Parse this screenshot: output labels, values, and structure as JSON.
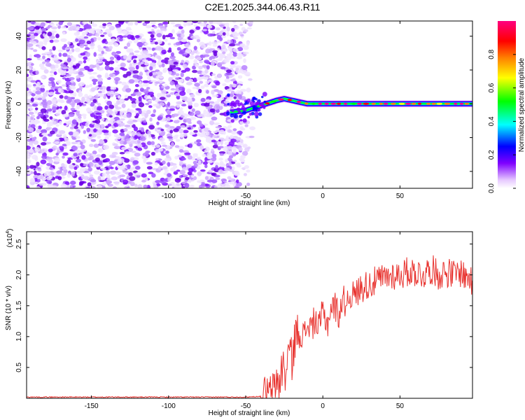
{
  "title": "C2E1.2025.344.06.43.R11",
  "chart_data": [
    {
      "type": "heatmap",
      "title": "C2E1.2025.344.06.43.R11",
      "xlabel": "Height of straight line (km)",
      "ylabel": "Frequency (Hz)",
      "xlim": [
        -192,
        97
      ],
      "ylim": [
        -50,
        49
      ],
      "x_ticks": [
        -150,
        -100,
        -50,
        0,
        50
      ],
      "y_ticks": [
        -40,
        -20,
        0,
        20,
        40
      ],
      "grid": false,
      "colorbar": {
        "label": "Normalized spectral amplitude",
        "range": [
          0.0,
          1.0
        ],
        "ticks": [
          0.0,
          0.2,
          0.4,
          0.6,
          0.8
        ],
        "colors": [
          "#ffffff",
          "#7f00ff",
          "#0000ff",
          "#00ffff",
          "#00ff00",
          "#ffff00",
          "#ff8000",
          "#ff0000",
          "#ff0080"
        ]
      },
      "description_regions": {
        "noise_region_x": [
          -192,
          -45
        ],
        "signal_track": {
          "x": [
            -60,
            -50,
            -40,
            -30,
            -25,
            -20,
            -10,
            0,
            10,
            20,
            30,
            50,
            70,
            97
          ],
          "freq": [
            -5,
            -4,
            -1,
            2,
            3,
            2,
            0,
            0,
            0,
            0,
            0,
            0,
            0,
            0
          ]
        }
      }
    },
    {
      "type": "line",
      "xlabel": "Height of straight line (km)",
      "ylabel": "SNR (10 * v/v)",
      "y_multiplier": "(x10",
      "y_exponent": "4",
      "y_multiplier_close": ")",
      "xlim": [
        -192,
        97
      ],
      "ylim": [
        0,
        2.7
      ],
      "x_ticks": [
        -150,
        -100,
        -50,
        0,
        50
      ],
      "y_ticks": [
        0.5,
        1.0,
        1.5,
        2.0,
        2.5
      ],
      "y_tick_labels": [
        "0.5",
        "1.0",
        "1.5",
        "2.0",
        "2.5"
      ],
      "color": "#e8332f",
      "series": [
        {
          "name": "SNR",
          "x": [
            -192,
            -170,
            -150,
            -130,
            -110,
            -90,
            -70,
            -50,
            -40,
            -35,
            -32,
            -30,
            -28,
            -26,
            -24,
            -22,
            -20,
            -18,
            -15,
            -12,
            -10,
            -7,
            -5,
            -3,
            0,
            3,
            5,
            8,
            10,
            13,
            15,
            18,
            20,
            25,
            30,
            35,
            40,
            45,
            50,
            55,
            60,
            65,
            70,
            75,
            80,
            85,
            90,
            93,
            95,
            97
          ],
          "values": [
            0.02,
            0.02,
            0.02,
            0.02,
            0.02,
            0.02,
            0.02,
            0.02,
            0.03,
            0.05,
            0.1,
            0.3,
            0.25,
            0.55,
            0.35,
            0.85,
            0.6,
            1.0,
            1.1,
            1.0,
            1.2,
            1.15,
            1.3,
            1.1,
            1.4,
            1.2,
            1.45,
            1.5,
            1.35,
            1.6,
            1.55,
            1.7,
            1.65,
            1.8,
            1.85,
            1.9,
            1.95,
            2.0,
            2.0,
            2.05,
            2.05,
            2.0,
            2.1,
            2.0,
            2.05,
            2.0,
            2.05,
            1.95,
            2.0,
            1.75
          ]
        }
      ]
    }
  ]
}
